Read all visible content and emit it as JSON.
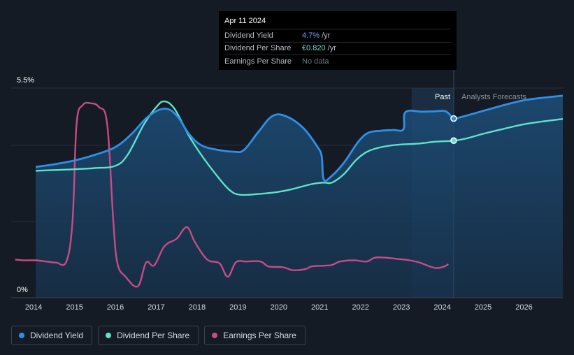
{
  "chart_data": {
    "type": "line",
    "x_axis": {
      "min": 2013.45,
      "max": 2026.95,
      "ticks": [
        2014,
        2015,
        2016,
        2017,
        2018,
        2019,
        2020,
        2021,
        2022,
        2023,
        2024,
        2025,
        2026
      ]
    },
    "y_axis": {
      "min": 0,
      "max": 5.5,
      "top_label": "5.5%",
      "bottom_label": "0%"
    },
    "past_label": "Past",
    "forecast_label": "Analysts Forecasts",
    "past_region_start": 2023.25,
    "now_x": 2024.28,
    "colors": {
      "dividend_yield": "#2e8fe6",
      "dividend_per_share": "#5ee2cc",
      "earnings_per_share": "#c84a88",
      "background": "#151b24"
    },
    "series": [
      {
        "name": "Dividend Yield",
        "key": "dy",
        "points": [
          [
            2014.05,
            3.43
          ],
          [
            2014.5,
            3.5
          ],
          [
            2015.0,
            3.6
          ],
          [
            2015.5,
            3.75
          ],
          [
            2016.0,
            3.95
          ],
          [
            2016.4,
            4.3
          ],
          [
            2016.8,
            4.75
          ],
          [
            2017.2,
            4.96
          ],
          [
            2017.5,
            4.78
          ],
          [
            2017.8,
            4.3
          ],
          [
            2018.1,
            4.0
          ],
          [
            2018.5,
            3.88
          ],
          [
            2018.9,
            3.83
          ],
          [
            2019.15,
            3.88
          ],
          [
            2019.5,
            4.35
          ],
          [
            2019.85,
            4.77
          ],
          [
            2020.2,
            4.75
          ],
          [
            2020.6,
            4.45
          ],
          [
            2020.95,
            3.95
          ],
          [
            2021.05,
            3.7
          ],
          [
            2021.1,
            3.1
          ],
          [
            2021.3,
            3.2
          ],
          [
            2021.6,
            3.55
          ],
          [
            2021.95,
            4.1
          ],
          [
            2022.2,
            4.33
          ],
          [
            2022.5,
            4.38
          ],
          [
            2022.8,
            4.4
          ],
          [
            2023.05,
            4.42
          ],
          [
            2023.1,
            4.87
          ],
          [
            2023.5,
            4.88
          ],
          [
            2023.8,
            4.89
          ],
          [
            2024.05,
            4.9
          ],
          [
            2024.17,
            4.82
          ],
          [
            2024.28,
            4.7
          ],
          [
            2024.5,
            4.75
          ],
          [
            2025.0,
            4.9
          ],
          [
            2025.5,
            5.05
          ],
          [
            2026.0,
            5.18
          ],
          [
            2026.5,
            5.25
          ],
          [
            2026.95,
            5.3
          ]
        ]
      },
      {
        "name": "Dividend Per Share",
        "key": "dps",
        "points": [
          [
            2014.05,
            3.33
          ],
          [
            2014.5,
            3.35
          ],
          [
            2015.0,
            3.37
          ],
          [
            2015.5,
            3.4
          ],
          [
            2016.0,
            3.46
          ],
          [
            2016.3,
            3.75
          ],
          [
            2016.7,
            4.55
          ],
          [
            2017.0,
            5.0
          ],
          [
            2017.2,
            5.15
          ],
          [
            2017.45,
            4.95
          ],
          [
            2017.8,
            4.25
          ],
          [
            2018.1,
            3.75
          ],
          [
            2018.5,
            3.18
          ],
          [
            2018.8,
            2.82
          ],
          [
            2019.05,
            2.7
          ],
          [
            2019.5,
            2.72
          ],
          [
            2019.95,
            2.77
          ],
          [
            2020.3,
            2.84
          ],
          [
            2020.8,
            2.98
          ],
          [
            2021.1,
            3.02
          ],
          [
            2021.3,
            3.02
          ],
          [
            2021.6,
            3.25
          ],
          [
            2021.9,
            3.62
          ],
          [
            2022.2,
            3.85
          ],
          [
            2022.6,
            3.97
          ],
          [
            2023.0,
            4.02
          ],
          [
            2023.4,
            4.04
          ],
          [
            2023.8,
            4.09
          ],
          [
            2024.28,
            4.12
          ],
          [
            2024.6,
            4.18
          ],
          [
            2025.0,
            4.3
          ],
          [
            2025.5,
            4.43
          ],
          [
            2026.0,
            4.55
          ],
          [
            2026.5,
            4.63
          ],
          [
            2026.95,
            4.69
          ]
        ]
      },
      {
        "name": "Earnings Per Share",
        "key": "eps",
        "points": [
          [
            2013.55,
            1.0
          ],
          [
            2013.75,
            0.98
          ],
          [
            2014.05,
            0.98
          ],
          [
            2014.3,
            0.95
          ],
          [
            2014.55,
            0.92
          ],
          [
            2014.8,
            0.95
          ],
          [
            2014.95,
            2.0
          ],
          [
            2015.05,
            4.55
          ],
          [
            2015.2,
            5.05
          ],
          [
            2015.4,
            5.1
          ],
          [
            2015.6,
            5.0
          ],
          [
            2015.8,
            4.55
          ],
          [
            2015.95,
            2.0
          ],
          [
            2016.05,
            0.9
          ],
          [
            2016.25,
            0.55
          ],
          [
            2016.55,
            0.3
          ],
          [
            2016.75,
            0.92
          ],
          [
            2016.95,
            0.85
          ],
          [
            2017.2,
            1.35
          ],
          [
            2017.5,
            1.55
          ],
          [
            2017.75,
            1.85
          ],
          [
            2017.95,
            1.45
          ],
          [
            2018.25,
            1.0
          ],
          [
            2018.55,
            0.9
          ],
          [
            2018.75,
            0.55
          ],
          [
            2018.95,
            0.93
          ],
          [
            2019.2,
            0.95
          ],
          [
            2019.55,
            0.95
          ],
          [
            2019.75,
            0.82
          ],
          [
            2020.1,
            0.8
          ],
          [
            2020.35,
            0.72
          ],
          [
            2020.65,
            0.75
          ],
          [
            2020.8,
            0.82
          ],
          [
            2021.1,
            0.84
          ],
          [
            2021.3,
            0.86
          ],
          [
            2021.5,
            0.95
          ],
          [
            2021.85,
            0.98
          ],
          [
            2022.15,
            0.95
          ],
          [
            2022.35,
            1.05
          ],
          [
            2022.6,
            1.05
          ],
          [
            2022.9,
            1.02
          ],
          [
            2023.2,
            0.98
          ],
          [
            2023.45,
            0.92
          ],
          [
            2023.75,
            0.8
          ],
          [
            2023.9,
            0.78
          ],
          [
            2024.05,
            0.82
          ],
          [
            2024.15,
            0.88
          ]
        ]
      }
    ],
    "highlight_points": [
      {
        "series": "dy",
        "x": 2024.28,
        "y": 4.7
      },
      {
        "series": "dps",
        "x": 2024.28,
        "y": 4.12
      }
    ]
  },
  "tooltip": {
    "date": "Apr 11 2024",
    "rows": [
      {
        "label": "Dividend Yield",
        "value": "4.7%",
        "unit": "/yr"
      },
      {
        "label": "Dividend Per Share",
        "value": "€0.820",
        "unit": "/yr"
      },
      {
        "label": "Earnings Per Share",
        "value": "No data",
        "unit": ""
      }
    ]
  },
  "legend": [
    {
      "label": "Dividend Yield",
      "color": "#2e8fe6"
    },
    {
      "label": "Dividend Per Share",
      "color": "#5ee2cc"
    },
    {
      "label": "Earnings Per Share",
      "color": "#c84a88"
    }
  ]
}
